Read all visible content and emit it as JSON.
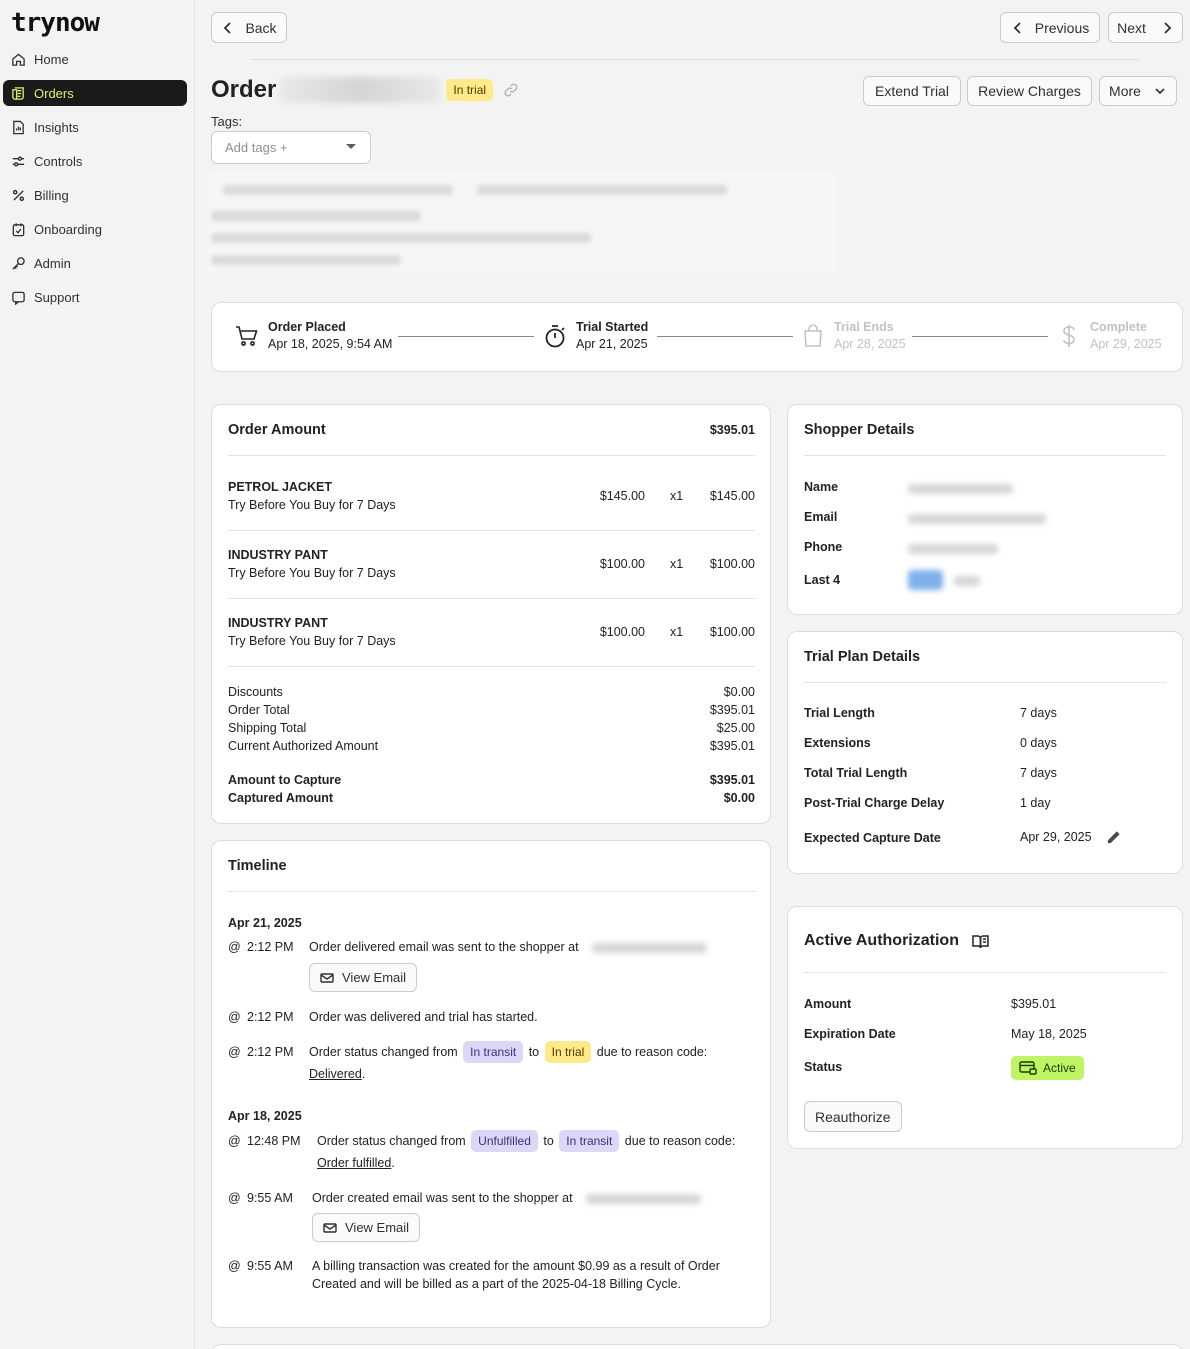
{
  "app": {
    "logo": "trynow"
  },
  "sidebar": {
    "items": [
      {
        "label": "Home",
        "icon": "home-icon"
      },
      {
        "label": "Orders",
        "icon": "orders-icon"
      },
      {
        "label": "Insights",
        "icon": "insights-icon"
      },
      {
        "label": "Controls",
        "icon": "controls-icon"
      },
      {
        "label": "Billing",
        "icon": "billing-icon"
      },
      {
        "label": "Onboarding",
        "icon": "onboarding-icon"
      },
      {
        "label": "Admin",
        "icon": "admin-icon"
      },
      {
        "label": "Support",
        "icon": "support-icon"
      }
    ],
    "active_index": 1
  },
  "toolbar": {
    "back": "Back",
    "previous": "Previous",
    "next": "Next"
  },
  "header": {
    "title": "Order",
    "status_badge": "In trial",
    "actions": {
      "extend": "Extend Trial",
      "review": "Review Charges",
      "more": "More"
    },
    "tags_label": "Tags:",
    "tags_placeholder": "Add tags +"
  },
  "progress": [
    {
      "title": "Order Placed",
      "date": "Apr 18, 2025, 9:54 AM",
      "state": "done"
    },
    {
      "title": "Trial Started",
      "date": "Apr 21, 2025",
      "state": "done"
    },
    {
      "title": "Trial Ends",
      "date": "Apr 28, 2025",
      "state": "pending"
    },
    {
      "title": "Complete",
      "date": "Apr 29, 2025",
      "state": "pending"
    }
  ],
  "order_amount": {
    "title": "Order Amount",
    "total": "$395.01",
    "items": [
      {
        "name": "PETROL JACKET",
        "plan": "Try Before You Buy for 7 Days",
        "price": "$145.00",
        "qty": "x1",
        "line_total": "$145.00"
      },
      {
        "name": "INDUSTRY PANT",
        "plan": "Try Before You Buy for 7 Days",
        "price": "$100.00",
        "qty": "x1",
        "line_total": "$100.00"
      },
      {
        "name": "INDUSTRY PANT",
        "plan": "Try Before You Buy for 7 Days",
        "price": "$100.00",
        "qty": "x1",
        "line_total": "$100.00"
      }
    ],
    "summary": [
      {
        "label": "Discounts",
        "value": "$0.00"
      },
      {
        "label": "Order Total",
        "value": "$395.01"
      },
      {
        "label": "Shipping Total",
        "value": "$25.00"
      },
      {
        "label": "Current Authorized Amount",
        "value": "$395.01"
      }
    ],
    "capture": [
      {
        "label": "Amount to Capture",
        "value": "$395.01"
      },
      {
        "label": "Captured Amount",
        "value": "$0.00"
      }
    ]
  },
  "shopper": {
    "title": "Shopper Details",
    "labels": {
      "name": "Name",
      "email": "Email",
      "phone": "Phone",
      "last4": "Last 4"
    }
  },
  "trial_plan": {
    "title": "Trial Plan Details",
    "rows": [
      {
        "label": "Trial Length",
        "value": "7 days"
      },
      {
        "label": "Extensions",
        "value": "0 days"
      },
      {
        "label": "Total Trial Length",
        "value": "7 days"
      },
      {
        "label": "Post-Trial Charge Delay",
        "value": "1 day"
      },
      {
        "label": "Expected Capture Date",
        "value": "Apr 29, 2025"
      }
    ]
  },
  "authorization": {
    "title": "Active Authorization",
    "rows": [
      {
        "label": "Amount",
        "value": "$395.01"
      },
      {
        "label": "Expiration Date",
        "value": "May 18, 2025"
      },
      {
        "label": "Status",
        "value": "Active"
      }
    ],
    "reauthorize": "Reauthorize"
  },
  "timeline": {
    "title": "Timeline",
    "at": "@",
    "groups": [
      {
        "date": "Apr 21, 2025"
      },
      {
        "date": "Apr 18, 2025"
      }
    ],
    "events": [
      {
        "time": "2:12 PM",
        "text": "Order delivered email was sent to the shopper at",
        "button": "View Email"
      },
      {
        "time": "2:12 PM",
        "text": "Order was delivered and trial has started."
      },
      {
        "time": "2:12 PM",
        "pre": "Order status changed from",
        "from": "In transit",
        "mid": "to",
        "to": "In trial",
        "post": "due to reason code:",
        "reason": "Delivered",
        "end": "."
      },
      {
        "time": "12:48 PM",
        "pre": "Order status changed from",
        "from": "Unfulfilled",
        "mid": "to",
        "to": "In transit",
        "post": "due to reason code:",
        "reason": "Order fulfilled",
        "end": "."
      },
      {
        "time": "9:55 AM",
        "text": "Order created email was sent to the shopper at",
        "button": "View Email"
      },
      {
        "time": "9:55 AM",
        "line1": "A billing transaction was created for the amount $0.99 as a result of Order",
        "line2": "Created and will be billed as a part of the 2025-04-18 Billing Cycle."
      }
    ]
  }
}
